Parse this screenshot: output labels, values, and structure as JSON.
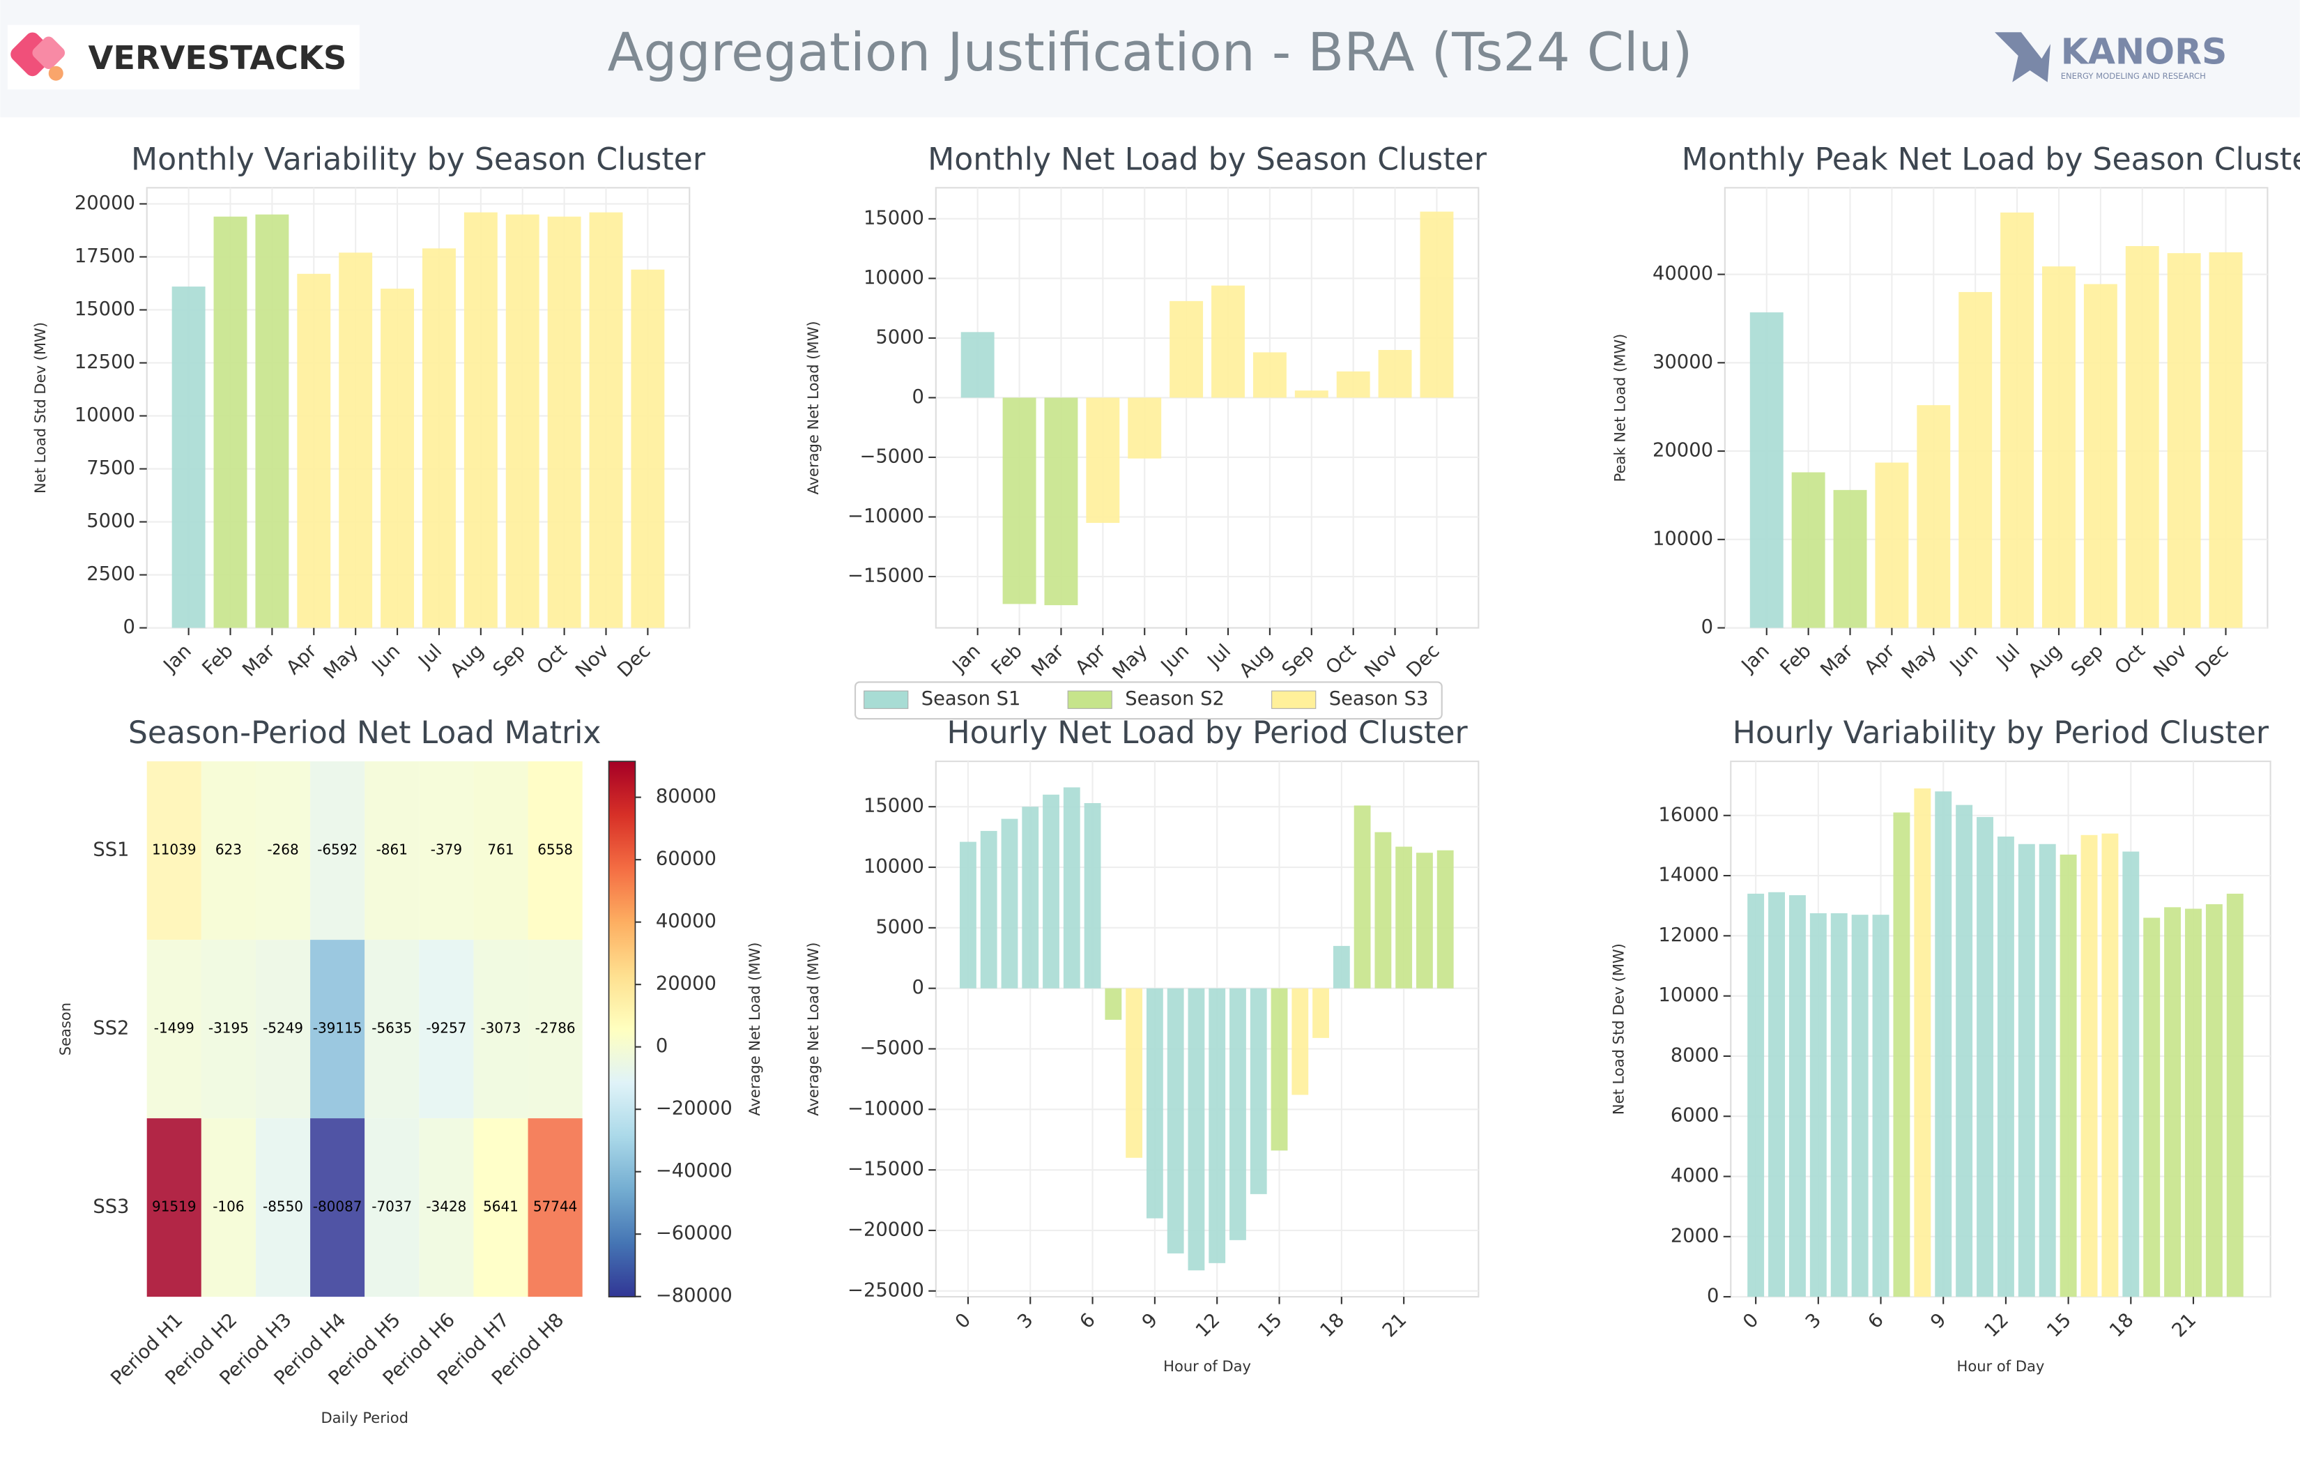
{
  "header": {
    "title": "Aggregation Justification - BRA (Ts24 Clu)",
    "left_logo": "VERVESTACKS",
    "right_logo": "KANORS",
    "right_logo_tagline": "ENERGY MODELING AND RESEARCH"
  },
  "legend": [
    {
      "name": "Season S1",
      "color": "#a8dcd4"
    },
    {
      "name": "Season S2",
      "color": "#c6e48b"
    },
    {
      "name": "Season S3",
      "color": "#fff09a"
    }
  ],
  "chart_data": [
    {
      "type": "bar",
      "title": "Monthly Variability by Season Cluster",
      "y_label": "Net Load Std Dev (MW)",
      "categories": [
        "Jan",
        "Feb",
        "Mar",
        "Apr",
        "May",
        "Jun",
        "Jul",
        "Aug",
        "Sep",
        "Oct",
        "Nov",
        "Dec"
      ],
      "values": [
        16100,
        19400,
        19500,
        16700,
        17700,
        16000,
        17900,
        19600,
        19500,
        19400,
        19600,
        16900
      ],
      "colors": [
        "#a8dcd4",
        "#c6e48b",
        "#c6e48b",
        "#fff09a",
        "#fff09a",
        "#fff09a",
        "#fff09a",
        "#fff09a",
        "#fff09a",
        "#fff09a",
        "#fff09a",
        "#fff09a"
      ],
      "ylim": [
        0,
        20760
      ],
      "yticks": [
        0,
        2500,
        5000,
        7500,
        10000,
        12500,
        15000,
        17500,
        20000
      ],
      "grid": true
    },
    {
      "type": "bar",
      "title": "Monthly Net Load by Season Cluster",
      "y_label": "Average Net Load (MW)",
      "categories": [
        "Jan",
        "Feb",
        "Mar",
        "Apr",
        "May",
        "Jun",
        "Jul",
        "Aug",
        "Sep",
        "Oct",
        "Nov",
        "Dec"
      ],
      "values": [
        5500,
        -17300,
        -17400,
        -10500,
        -5100,
        8100,
        9400,
        3800,
        600,
        2200,
        4000,
        15600
      ],
      "colors": [
        "#a8dcd4",
        "#c6e48b",
        "#c6e48b",
        "#fff09a",
        "#fff09a",
        "#fff09a",
        "#fff09a",
        "#fff09a",
        "#fff09a",
        "#fff09a",
        "#fff09a",
        "#fff09a"
      ],
      "ylim": [
        -19300,
        17600
      ],
      "yticks": [
        {
          "value": -15000,
          "label": "−15000"
        },
        {
          "value": -10000,
          "label": "−10000"
        },
        {
          "value": -5000,
          "label": "−5000"
        },
        0,
        5000,
        10000,
        15000
      ],
      "grid": true
    },
    {
      "type": "bar",
      "title": "Monthly Peak Net Load by Season Cluste",
      "y_label": "Peak Net Load (MW)",
      "categories": [
        "Jan",
        "Feb",
        "Mar",
        "Apr",
        "May",
        "Jun",
        "Jul",
        "Aug",
        "Sep",
        "Oct",
        "Nov",
        "Dec"
      ],
      "values": [
        35700,
        17600,
        15600,
        18700,
        25200,
        38000,
        47000,
        40900,
        38900,
        43200,
        42400,
        42500
      ],
      "colors": [
        "#a8dcd4",
        "#c6e48b",
        "#c6e48b",
        "#fff09a",
        "#fff09a",
        "#fff09a",
        "#fff09a",
        "#fff09a",
        "#fff09a",
        "#fff09a",
        "#fff09a",
        "#fff09a"
      ],
      "ylim": [
        0,
        49800
      ],
      "yticks": [
        0,
        10000,
        20000,
        30000,
        40000
      ],
      "grid": true
    },
    {
      "type": "heatmap",
      "title": "Season-Period Net Load Matrix",
      "x_label": "Daily Period",
      "y_label": "Season",
      "colorbar_label": "Average Net Load (MW)",
      "colormap": "RdYlBu_r",
      "rows": [
        "SS1",
        "SS2",
        "SS3"
      ],
      "columns": [
        "Period H1",
        "Period H2",
        "Period H3",
        "Period H4",
        "Period H5",
        "Period H6",
        "Period H7",
        "Period H8"
      ],
      "values": [
        [
          11039,
          623,
          -268,
          -6592,
          -861,
          -379,
          761,
          6558
        ],
        [
          -1499,
          -3195,
          -5249,
          -39115,
          -5635,
          -9257,
          -3073,
          -2786
        ],
        [
          91519,
          -106,
          -8550,
          -80087,
          -7037,
          -3428,
          5641,
          57744
        ]
      ],
      "zlim": [
        -80087,
        91519
      ],
      "zticks": [
        {
          "value": -80000,
          "label": "−80000"
        },
        {
          "value": -60000,
          "label": "−60000"
        },
        {
          "value": -40000,
          "label": "−40000"
        },
        {
          "value": -20000,
          "label": "−20000"
        },
        0,
        20000,
        40000,
        60000,
        80000
      ]
    },
    {
      "type": "bar",
      "title": "Hourly Net Load by Period Cluster",
      "x_label": "Hour of Day",
      "y_label": "Average Net Load (MW)",
      "x": [
        0,
        1,
        2,
        3,
        4,
        5,
        6,
        7,
        8,
        9,
        10,
        11,
        12,
        13,
        14,
        15,
        16,
        17,
        18,
        19,
        20,
        21,
        22,
        23
      ],
      "values": [
        12100,
        13000,
        14000,
        15000,
        16000,
        16600,
        15300,
        -2600,
        -14000,
        -19000,
        -21900,
        -23300,
        -22700,
        -20800,
        -17000,
        -13400,
        -8800,
        -4100,
        3500,
        15100,
        12900,
        11700,
        11200,
        11400
      ],
      "colors": [
        "#a8dcd4",
        "#a8dcd4",
        "#a8dcd4",
        "#a8dcd4",
        "#a8dcd4",
        "#a8dcd4",
        "#a8dcd4",
        "#c6e48b",
        "#fff09a",
        "#a8dcd4",
        "#a8dcd4",
        "#a8dcd4",
        "#a8dcd4",
        "#a8dcd4",
        "#a8dcd4",
        "#c6e48b",
        "#fff09a",
        "#fff09a",
        "#a8dcd4",
        "#c6e48b",
        "#c6e48b",
        "#c6e48b",
        "#c6e48b",
        "#c6e48b"
      ],
      "xlim": [
        -1.55,
        24.6
      ],
      "xticks": [
        0,
        3,
        6,
        9,
        12,
        15,
        18,
        21
      ],
      "ylim": [
        -25480,
        18750
      ],
      "yticks": [
        {
          "value": -25000,
          "label": "−25000"
        },
        {
          "value": -20000,
          "label": "−20000"
        },
        {
          "value": -15000,
          "label": "−15000"
        },
        {
          "value": -10000,
          "label": "−10000"
        },
        {
          "value": -5000,
          "label": "−5000"
        },
        0,
        5000,
        10000,
        15000
      ],
      "grid": true
    },
    {
      "type": "bar",
      "title": "Hourly Variability by Period Cluster",
      "x_label": "Hour of Day",
      "y_label": "Net Load Std Dev (MW)",
      "x": [
        0,
        1,
        2,
        3,
        4,
        5,
        6,
        7,
        8,
        9,
        10,
        11,
        12,
        13,
        14,
        15,
        16,
        17,
        18,
        19,
        20,
        21,
        22,
        23
      ],
      "values": [
        13400,
        13450,
        13350,
        12750,
        12750,
        12700,
        12700,
        16100,
        16900,
        16800,
        16350,
        15950,
        15300,
        15050,
        15050,
        14700,
        15350,
        15400,
        14800,
        12600,
        12950,
        12900,
        13050,
        13400
      ],
      "colors": [
        "#a8dcd4",
        "#a8dcd4",
        "#a8dcd4",
        "#a8dcd4",
        "#a8dcd4",
        "#a8dcd4",
        "#a8dcd4",
        "#c6e48b",
        "#fff09a",
        "#a8dcd4",
        "#a8dcd4",
        "#a8dcd4",
        "#a8dcd4",
        "#a8dcd4",
        "#a8dcd4",
        "#c6e48b",
        "#fff09a",
        "#fff09a",
        "#a8dcd4",
        "#c6e48b",
        "#c6e48b",
        "#c6e48b",
        "#c6e48b",
        "#c6e48b"
      ],
      "xlim": [
        -1.2,
        24.7
      ],
      "xticks": [
        0,
        3,
        6,
        9,
        12,
        15,
        18,
        21
      ],
      "ylim": [
        0,
        17800
      ],
      "yticks": [
        0,
        2000,
        4000,
        6000,
        8000,
        10000,
        12000,
        14000,
        16000
      ],
      "grid": true
    }
  ]
}
